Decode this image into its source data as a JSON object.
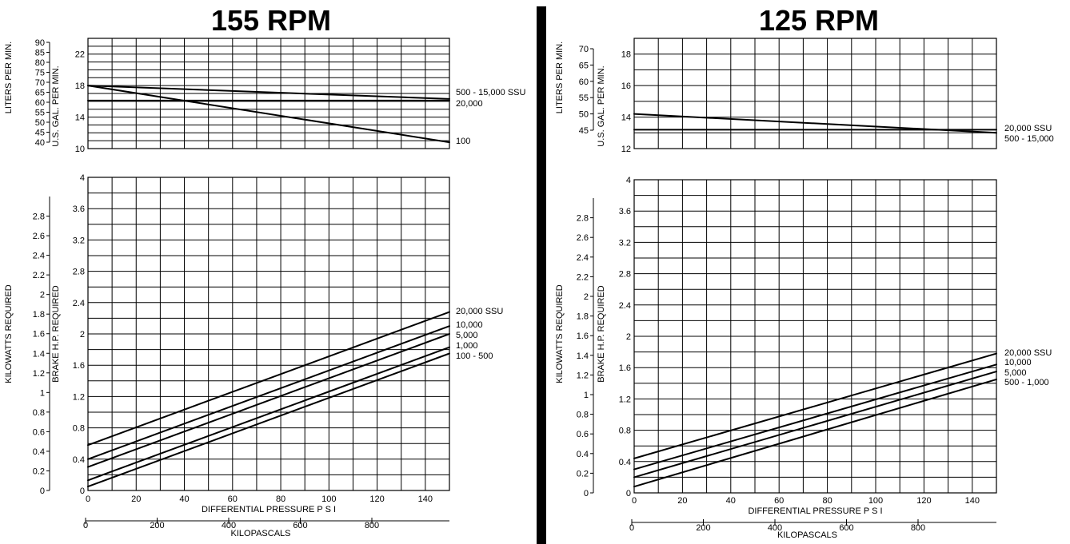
{
  "chart_data": [
    {
      "type": "line",
      "title": "155 RPM",
      "subplots": {
        "flow": {
          "y_left_outer": {
            "label": "LITERS PER MIN.",
            "ticks": [
              40,
              45,
              50,
              55,
              60,
              65,
              70,
              75,
              80,
              85,
              90
            ],
            "ylim": [
              40,
              90
            ]
          },
          "y_left_inner": {
            "label": "U.S. GAL. PER MIN.",
            "ticks": [
              10,
              14,
              18,
              22
            ],
            "ylim": [
              10,
              24
            ]
          },
          "xlim": [
            0,
            150
          ],
          "series": [
            {
              "name": "500 - 15,000 SSU",
              "x": [
                0,
                150
              ],
              "y": [
                18.0,
                16.3
              ]
            },
            {
              "name": "20,000",
              "x": [
                0,
                150
              ],
              "y": [
                16.1,
                16.1
              ]
            },
            {
              "name": "100",
              "x": [
                0,
                150
              ],
              "y": [
                18.0,
                10.8
              ]
            }
          ]
        },
        "power": {
          "y_left_outer": {
            "label": "KILOWATTS  REQUIRED",
            "ticks": [
              0,
              0.2,
              0.4,
              0.6,
              0.8,
              1,
              1.2,
              1.4,
              1.6,
              1.8,
              2,
              2.2,
              2.4,
              2.6,
              2.8
            ],
            "ylim": [
              0,
              3
            ]
          },
          "y_left_inner": {
            "label": "BRAKE  H.P.  REQUIRED",
            "ticks": [
              0,
              0.4,
              0.8,
              1.2,
              1.6,
              2,
              2.4,
              2.8,
              3.2,
              3.6,
              4
            ],
            "ylim": [
              0,
              4
            ]
          },
          "xlim": [
            0,
            150
          ],
          "series": [
            {
              "name": "20,000 SSU",
              "x": [
                0,
                150
              ],
              "y": [
                0.58,
                2.28
              ]
            },
            {
              "name": "10,000",
              "x": [
                0,
                150
              ],
              "y": [
                0.4,
                2.1
              ]
            },
            {
              "name": "5,000",
              "x": [
                0,
                150
              ],
              "y": [
                0.3,
                2.0
              ]
            },
            {
              "name": "1,000",
              "x": [
                0,
                150
              ],
              "y": [
                0.13,
                1.83
              ]
            },
            {
              "name": "100 - 500",
              "x": [
                0,
                150
              ],
              "y": [
                0.05,
                1.75
              ]
            }
          ]
        }
      },
      "xlabel": "DIFFERENTIAL  PRESSURE  P S I",
      "x_ticks": [
        0,
        20,
        40,
        60,
        80,
        100,
        120,
        140
      ],
      "x2label": "KILOPASCALS",
      "x2_ticks": [
        0,
        200,
        400,
        600,
        800
      ]
    },
    {
      "type": "line",
      "title": "125 RPM",
      "subplots": {
        "flow": {
          "y_left_outer": {
            "label": "LITERS PER MIN.",
            "ticks": [
              45,
              50,
              55,
              60,
              65,
              70
            ],
            "ylim": [
              45,
              70
            ]
          },
          "y_left_inner": {
            "label": "U.S. GAL. PER MIN.",
            "ticks": [
              12,
              14,
              16,
              18
            ],
            "ylim": [
              12,
              19
            ]
          },
          "xlim": [
            0,
            150
          ],
          "series": [
            {
              "name": "20,000 SSU",
              "x": [
                0,
                150
              ],
              "y": [
                13.2,
                13.2
              ]
            },
            {
              "name": "500 - 15,000",
              "x": [
                0,
                150
              ],
              "y": [
                14.2,
                13.0
              ]
            }
          ]
        },
        "power": {
          "y_left_outer": {
            "label": "KILOWATTS  REQUIRED",
            "ticks": [
              0,
              0.2,
              0.4,
              0.6,
              0.8,
              1,
              1.2,
              1.4,
              1.6,
              1.8,
              2,
              2.2,
              2.4,
              2.6,
              2.8
            ],
            "ylim": [
              0,
              3
            ]
          },
          "y_left_inner": {
            "label": "BRAKE  H.P.  REQUIRED",
            "ticks": [
              0,
              0.4,
              0.8,
              1.2,
              1.6,
              2,
              2.4,
              2.8,
              3.2,
              3.6,
              4
            ],
            "ylim": [
              0,
              4
            ]
          },
          "xlim": [
            0,
            150
          ],
          "series": [
            {
              "name": "20,000 SSU",
              "x": [
                0,
                150
              ],
              "y": [
                0.44,
                1.78
              ]
            },
            {
              "name": "10,000",
              "x": [
                0,
                150
              ],
              "y": [
                0.3,
                1.64
              ]
            },
            {
              "name": "5,000",
              "x": [
                0,
                150
              ],
              "y": [
                0.2,
                1.55
              ]
            },
            {
              "name": "500 - 1,000",
              "x": [
                0,
                150
              ],
              "y": [
                0.08,
                1.45
              ]
            }
          ]
        }
      },
      "xlabel": "DIFFERENTIAL  PRESSURE  P S I",
      "x_ticks": [
        0,
        20,
        40,
        60,
        80,
        100,
        120,
        140
      ],
      "x2label": "KILOPASCALS",
      "x2_ticks": [
        0,
        200,
        400,
        600,
        800
      ]
    }
  ]
}
